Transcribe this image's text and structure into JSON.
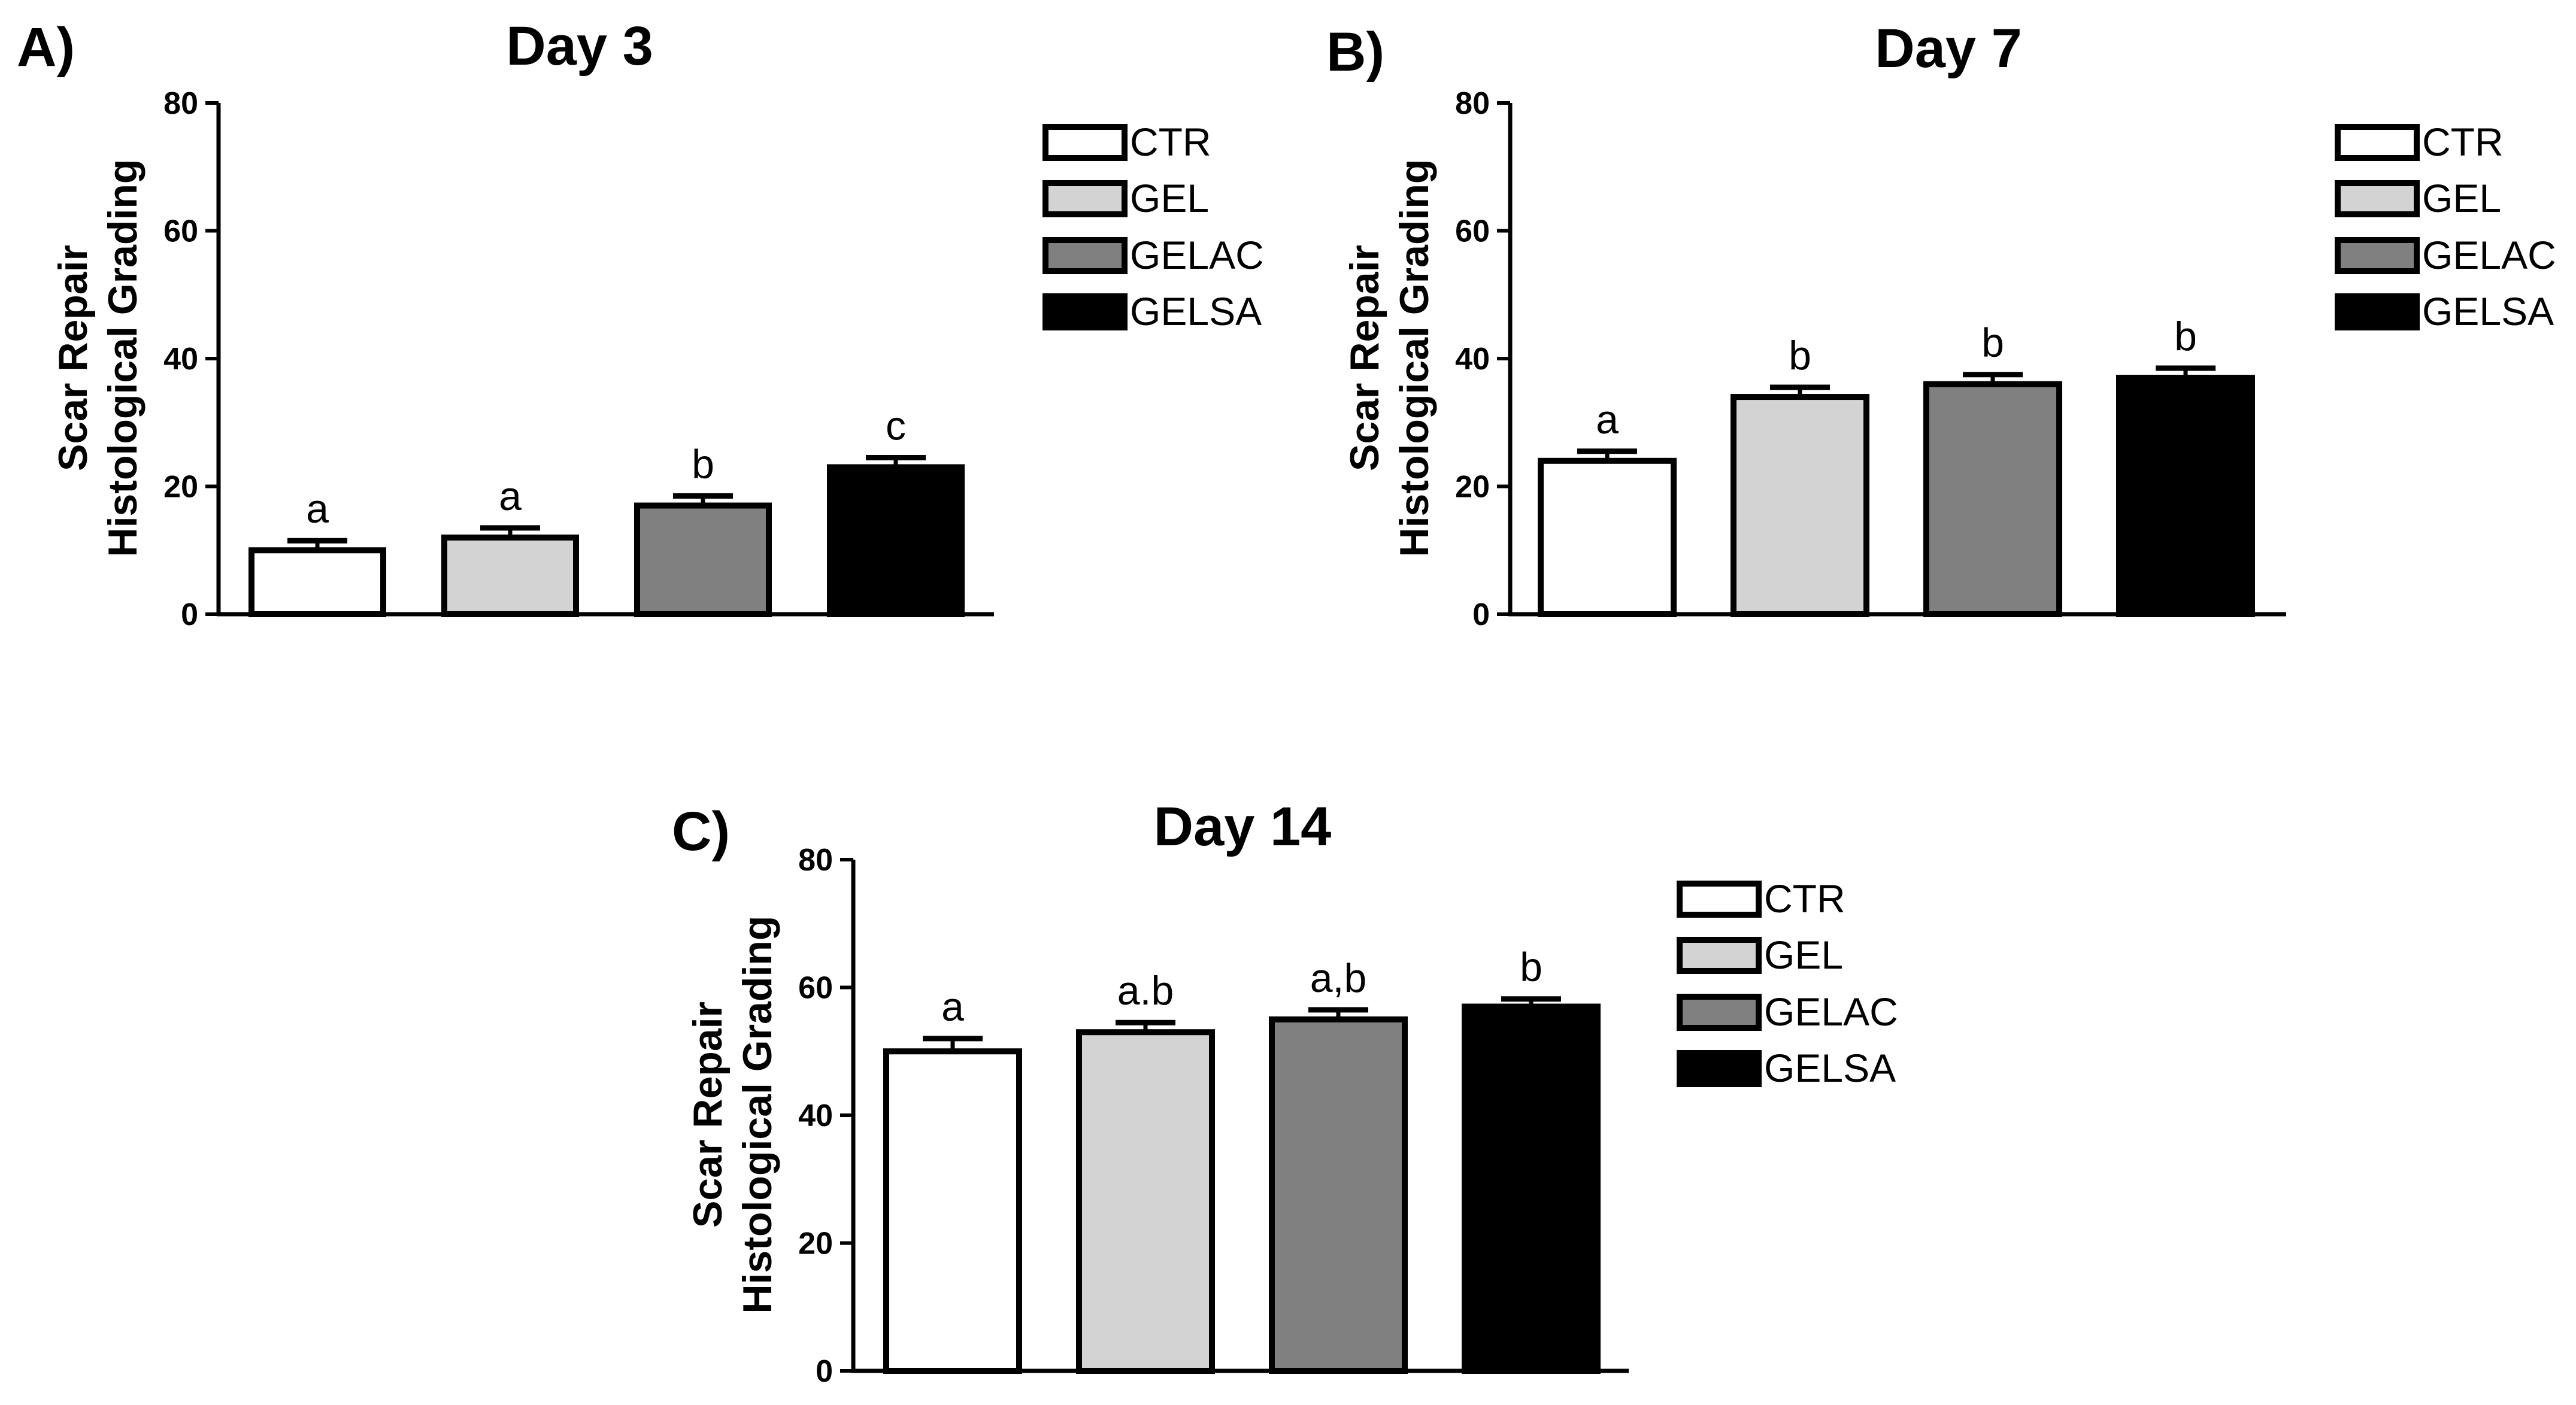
{
  "chart_data": [
    {
      "type": "bar",
      "panel": "A)",
      "title": "Day 3",
      "ylabel_line1": "Scar Repair",
      "ylabel_line2": "Histological Grading",
      "xlabel": "",
      "ylim": [
        0,
        80
      ],
      "yticks": [
        "0",
        "20",
        "40",
        "60",
        "80"
      ],
      "categories": [
        "CTR",
        "GEL",
        "GELAC",
        "GELSA"
      ],
      "values": [
        10,
        12,
        17,
        23
      ],
      "errors": [
        1.5,
        1.5,
        1.5,
        1.5
      ],
      "significance": [
        "a",
        "a",
        "b",
        "c"
      ]
    },
    {
      "type": "bar",
      "panel": "B)",
      "title": "Day 7",
      "ylabel_line1": "Scar Repair",
      "ylabel_line2": "Histological Grading",
      "xlabel": "",
      "ylim": [
        0,
        80
      ],
      "yticks": [
        "0",
        "20",
        "40",
        "60",
        "80"
      ],
      "categories": [
        "CTR",
        "GEL",
        "GELAC",
        "GELSA"
      ],
      "values": [
        24,
        34,
        36,
        37
      ],
      "errors": [
        1.5,
        1.5,
        1.5,
        1.5
      ],
      "significance": [
        "a",
        "b",
        "b",
        "b"
      ]
    },
    {
      "type": "bar",
      "panel": "C)",
      "title": "Day 14",
      "ylabel_line1": "Scar Repair",
      "ylabel_line2": "Histological Grading",
      "xlabel": "",
      "ylim": [
        0,
        80
      ],
      "yticks": [
        "0",
        "20",
        "40",
        "60",
        "80"
      ],
      "categories": [
        "CTR",
        "GEL",
        "GELAC",
        "GELSA"
      ],
      "values": [
        50,
        53,
        55,
        57
      ],
      "errors": [
        2,
        1.5,
        1.5,
        1.2
      ],
      "significance": [
        "a",
        "a.b",
        "a,b",
        "b"
      ]
    }
  ],
  "legend": [
    "CTR",
    "GEL",
    "GELAC",
    "GELSA"
  ],
  "colors": {
    "CTR": "#ffffff",
    "GEL": "#d3d3d3",
    "GELAC": "#808080",
    "GELSA": "#000000",
    "stroke": "#000000"
  }
}
